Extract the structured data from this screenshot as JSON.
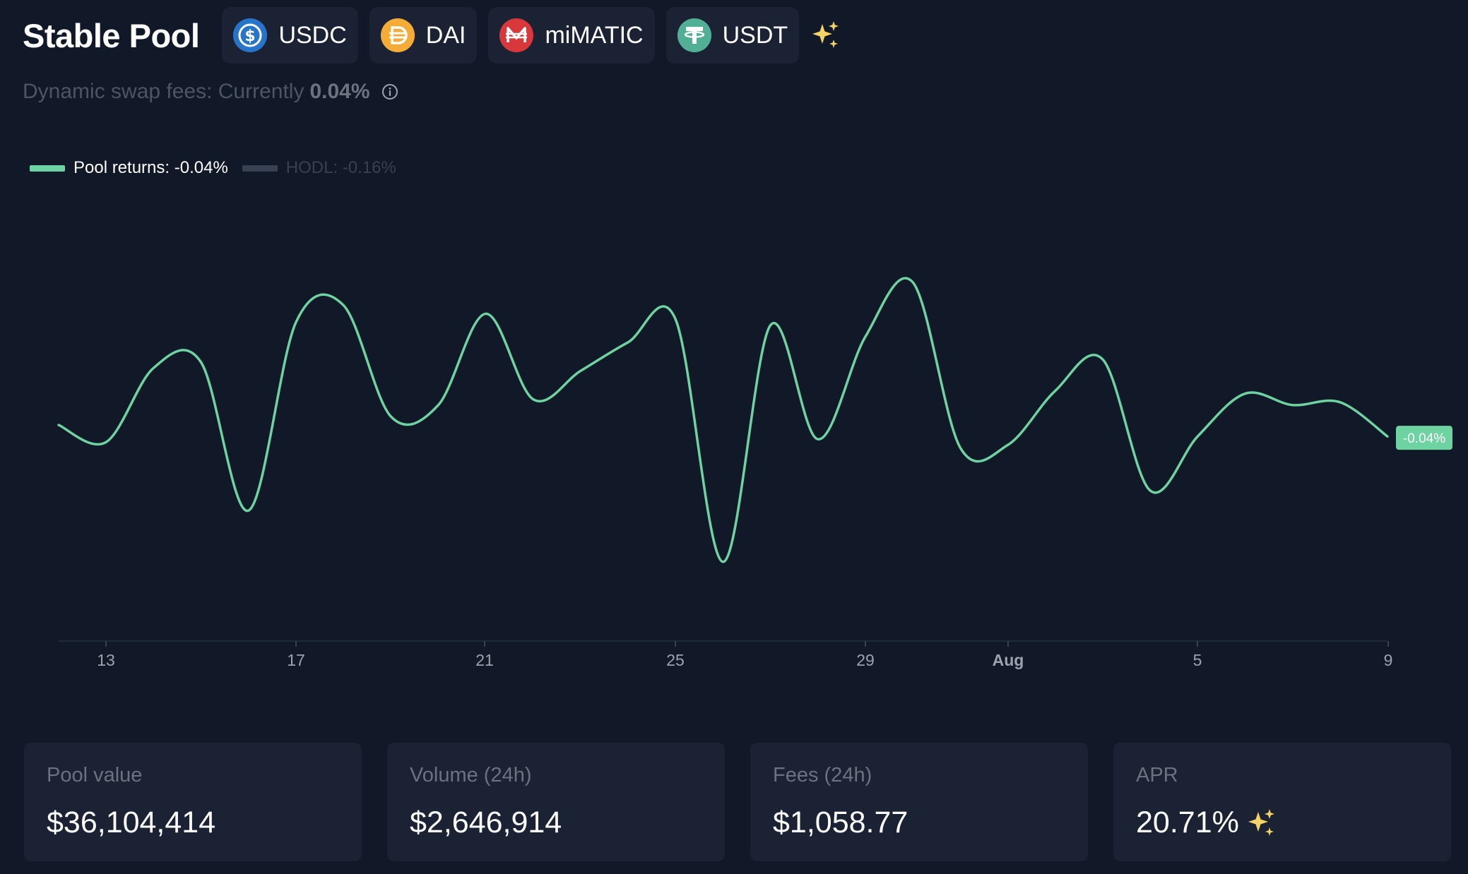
{
  "header": {
    "title": "Stable Pool",
    "tokens": [
      {
        "label": "USDC",
        "icon": "usdc-icon",
        "color": "#3e73c4"
      },
      {
        "label": "DAI",
        "icon": "dai-icon",
        "color": "#f5ac37"
      },
      {
        "label": "miMATIC",
        "icon": "mimatic-icon",
        "color": "#db3d3d"
      },
      {
        "label": "USDT",
        "icon": "usdt-icon",
        "color": "#50af95"
      }
    ]
  },
  "fees": {
    "text": "Dynamic swap fees: Currently",
    "value": "0.04%"
  },
  "legend": {
    "pool_returns": "Pool returns: -0.04%",
    "hodl": "HODL: -0.16%"
  },
  "colors": {
    "background": "#111827",
    "card": "#1a2233",
    "pool_line": "#6dd3a0",
    "hodl_line": "#374151",
    "sparkle": "#f6d365"
  },
  "chart_data": {
    "type": "line",
    "x_tick_labels": [
      "13",
      "17",
      "21",
      "25",
      "29",
      "Aug",
      "5",
      "9"
    ],
    "end_label": "-0.04%",
    "series": [
      {
        "name": "Pool returns: -0.04%",
        "values": [
          0.0,
          -0.06,
          0.2,
          0.22,
          -0.3,
          0.36,
          0.42,
          0.03,
          0.07,
          0.39,
          0.09,
          0.19,
          0.29,
          0.37,
          -0.48,
          0.35,
          -0.05,
          0.31,
          0.5,
          -0.08,
          -0.07,
          0.12,
          0.23,
          -0.23,
          -0.04,
          0.11,
          0.07,
          0.08,
          -0.04
        ]
      }
    ]
  },
  "stats": [
    {
      "label": "Pool value",
      "value": "$36,104,414"
    },
    {
      "label": "Volume (24h)",
      "value": "$2,646,914"
    },
    {
      "label": "Fees (24h)",
      "value": "$1,058.77"
    },
    {
      "label": "APR",
      "value": "20.71%"
    }
  ]
}
